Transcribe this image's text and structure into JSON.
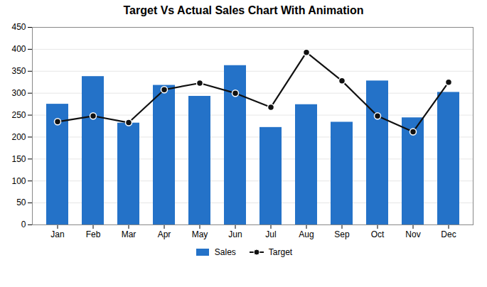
{
  "chart_data": {
    "type": "bar",
    "title": "Target Vs Actual Sales Chart With Animation",
    "categories": [
      "Jan",
      "Feb",
      "Mar",
      "Apr",
      "May",
      "Jun",
      "Jul",
      "Aug",
      "Sep",
      "Oct",
      "Nov",
      "Dec"
    ],
    "series": [
      {
        "name": "Sales",
        "type": "bar",
        "color": "#2472C8",
        "values": [
          275,
          338,
          232,
          318,
          293,
          363,
          222,
          274,
          234,
          328,
          244,
          302
        ]
      },
      {
        "name": "Target",
        "type": "line",
        "color": "#111111",
        "marker": "o",
        "values": [
          235,
          248,
          233,
          308,
          323,
          300,
          268,
          393,
          328,
          248,
          212,
          325
        ]
      }
    ],
    "ylim": [
      0,
      450
    ],
    "yticks": [
      0,
      50,
      100,
      150,
      200,
      250,
      300,
      350,
      400,
      450
    ],
    "grid": true,
    "legend": "bottom"
  }
}
